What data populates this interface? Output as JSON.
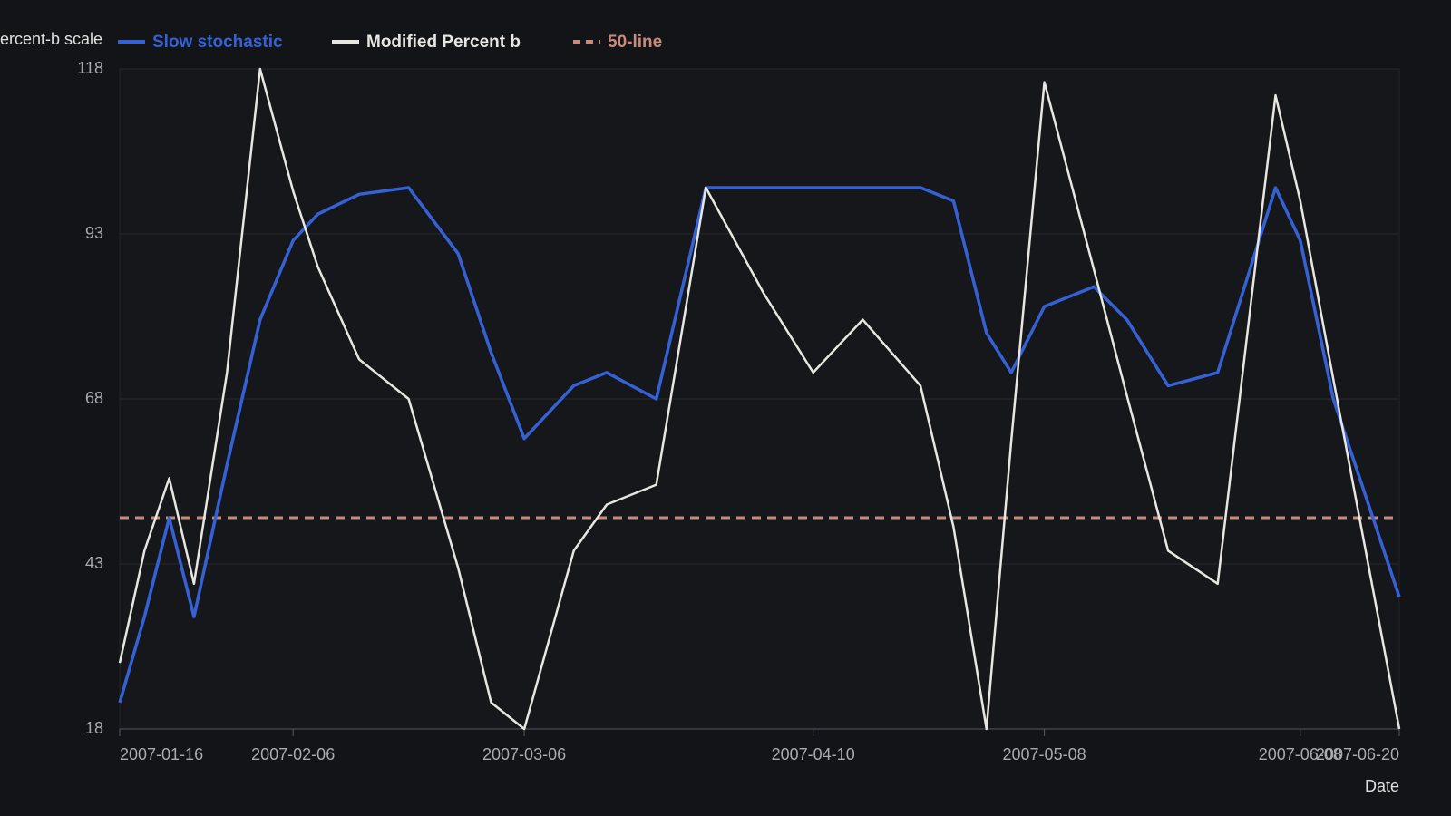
{
  "chart_data": {
    "type": "line",
    "ylabel": "Percent-b scale",
    "xlabel": "Date",
    "x": [
      "2007-01-16",
      "2007-01-19",
      "2007-01-22",
      "2007-01-25",
      "2007-01-29",
      "2007-02-02",
      "2007-02-06",
      "2007-02-09",
      "2007-02-14",
      "2007-02-20",
      "2007-02-26",
      "2007-03-02",
      "2007-03-06",
      "2007-03-12",
      "2007-03-16",
      "2007-03-22",
      "2007-03-28",
      "2007-04-04",
      "2007-04-10",
      "2007-04-16",
      "2007-04-23",
      "2007-04-27",
      "2007-05-01",
      "2007-05-04",
      "2007-05-08",
      "2007-05-14",
      "2007-05-18",
      "2007-05-23",
      "2007-05-29",
      "2007-06-05",
      "2007-06-08",
      "2007-06-12",
      "2007-06-20"
    ],
    "series": [
      {
        "name": "Slow stochastic",
        "color": "#3461d4",
        "values": [
          22,
          35,
          50,
          35,
          58,
          80,
          92,
          96,
          99,
          100,
          90,
          75,
          62,
          70,
          72,
          68,
          100,
          100,
          100,
          100,
          100,
          98,
          78,
          72,
          82,
          85,
          80,
          70,
          72,
          100,
          92,
          68,
          38
        ]
      },
      {
        "name": "Modified Percent b",
        "color": "#e8e6e1",
        "values": [
          28,
          45,
          56,
          40,
          72,
          118,
          99.5,
          88,
          74,
          68,
          42.4,
          22,
          18,
          45,
          52,
          55,
          100,
          84,
          72,
          80,
          70,
          48.6,
          18,
          61.6,
          116,
          87.6,
          68.5,
          45,
          40,
          114,
          98,
          71,
          18
        ]
      }
    ],
    "reference_line": {
      "name": "50-line",
      "value": 50,
      "color": "#c98a7a"
    },
    "xlim": [
      "2007-01-16",
      "2007-06-20"
    ],
    "xticks": [
      "2007-01-16",
      "2007-02-06",
      "2007-03-06",
      "2007-04-10",
      "2007-05-08",
      "2007-06-08",
      "2007-06-20"
    ],
    "ylim": [
      18,
      118
    ],
    "yticks": [
      18,
      43,
      68,
      93,
      118
    ],
    "grid": true
  }
}
